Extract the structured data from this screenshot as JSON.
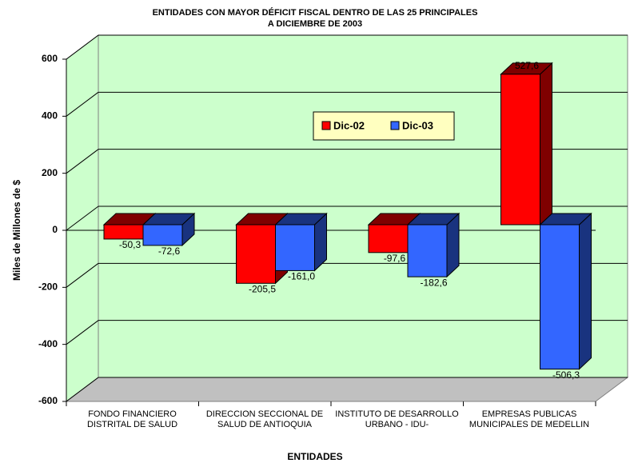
{
  "chart_data": {
    "type": "bar3d",
    "title": "ENTIDADES CON MAYOR DÉFICIT FISCAL DENTRO DE LAS 25 PRINCIPALES",
    "subtitle": "A DICIEMBRE DE 2003",
    "x_label": "ENTIDADES",
    "y_label": "Miles de Millones de $",
    "categories": [
      "FONDO FINANCIERO DISTRITAL DE SALUD",
      "DIRECCION SECCIONAL DE SALUD DE ANTIOQUIA",
      "INSTITUTO DE DESARROLLO URBANO - IDU-",
      "EMPRESAS PUBLICAS MUNICIPALES DE MEDELLIN"
    ],
    "series": [
      {
        "name": "Dic-02",
        "color": "#ff0000",
        "values": [
          -50.3,
          -205.5,
          -97.6,
          527.6
        ],
        "value_labels": [
          "-50,3",
          "-205,5",
          "-97,6",
          "527,6"
        ]
      },
      {
        "name": "Dic-03",
        "color": "#3366ff",
        "values": [
          -72.6,
          -161.0,
          -182.6,
          -506.3
        ],
        "value_labels": [
          "-72,6",
          "-161,0",
          "-182,6",
          "-506,3"
        ]
      }
    ],
    "ylim": [
      -600,
      600
    ],
    "yticks": [
      -600,
      -400,
      -200,
      0,
      200,
      400,
      600
    ],
    "grid": true
  }
}
